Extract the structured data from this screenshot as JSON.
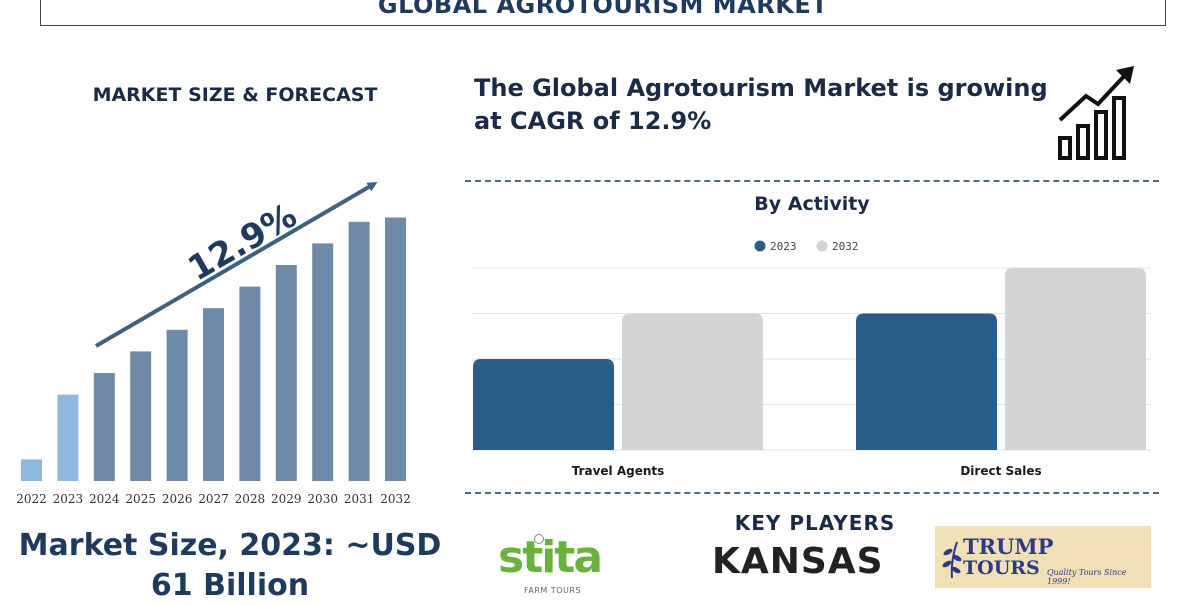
{
  "header": {
    "title": "GLOBAL AGROTOURISM MARKET"
  },
  "left_panel": {
    "heading": "MARKET SIZE & FORECAST",
    "market_size": "Market Size, 2023: ~USD 61 Billion"
  },
  "right_panel": {
    "cagr_text": "The Global Agrotourism Market is growing at CAGR of 12.9%",
    "activity_title": "By Activity",
    "key_players_title": "KEY PLAYERS",
    "key_players": {
      "stita": {
        "name": "stita",
        "subtitle": "FARM TOURS"
      },
      "kansas": {
        "name": "KANSAS"
      },
      "trump": {
        "line1": "TRUMP",
        "line2": "TOURS",
        "tagline": "Quality Tours Since 1999!"
      }
    }
  },
  "colors": {
    "forecast_bar": "#6f8aa8",
    "historic_bar": "#90b8de",
    "arrow": "#3e6180",
    "series_2023": "#2a5c8a",
    "series_2032": "#d4d4d4",
    "brand_dark": "#1f3a5f"
  },
  "icons": {
    "growth": "bar-chart-growth-icon"
  },
  "chart_data": [
    {
      "type": "bar",
      "title": "",
      "categories": [
        "2022",
        "2023",
        "2024",
        "2025",
        "2026",
        "2027",
        "2028",
        "2029",
        "2030",
        "2031",
        "2032"
      ],
      "values": [
        1.0,
        4.0,
        5.0,
        6.0,
        7.0,
        8.0,
        9.0,
        10.0,
        11.0,
        12.0,
        12.2
      ],
      "historic_count": 2,
      "annotation": "12.9%",
      "ylim": [
        0,
        12.5
      ],
      "grid": false,
      "legend": "none"
    },
    {
      "type": "bar",
      "title": "By Activity",
      "categories": [
        "Travel Agents",
        "Direct Sales"
      ],
      "series": [
        {
          "name": "2023",
          "values": [
            2,
            3
          ]
        },
        {
          "name": "2032",
          "values": [
            3,
            4
          ]
        }
      ],
      "ylim": [
        0,
        4
      ],
      "grid": true,
      "legend": "top-center"
    }
  ]
}
